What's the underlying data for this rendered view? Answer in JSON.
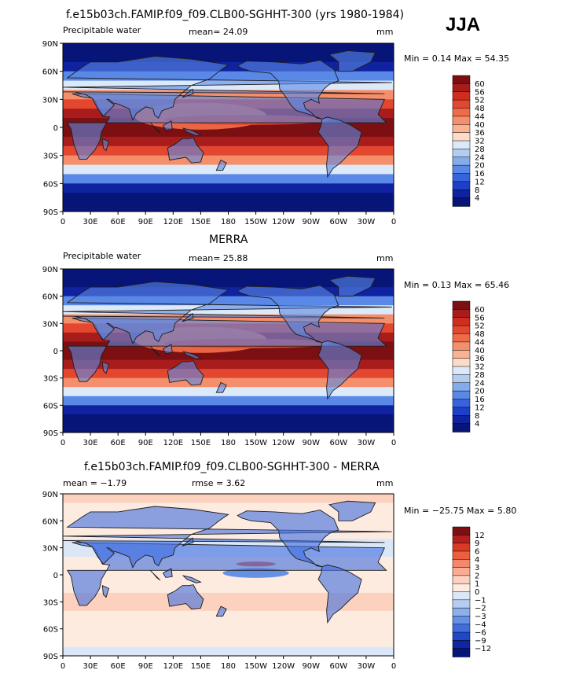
{
  "season": "JJA",
  "colors": {
    "land": "#1d1d1d",
    "background": "#ffffff"
  },
  "chart_data": [
    {
      "type": "heatmap",
      "title": "f.e15b03ch.FAMIP.f09_f09.CLB00-SGHHT-300 (yrs 1980-1984)",
      "left_label": "Precipitable water",
      "center_label": "mean=  24.09",
      "units": "mm",
      "minmax": "Min =   0.14 Max =  54.35",
      "stats": {
        "mean": 24.09,
        "min": 0.14,
        "max": 54.35
      },
      "xticks": [
        "0",
        "30E",
        "60E",
        "90E",
        "120E",
        "150E",
        "180",
        "150W",
        "120W",
        "90W",
        "60W",
        "30W",
        "0"
      ],
      "yticks": [
        "90N",
        "60N",
        "30N",
        "0",
        "30S",
        "60S",
        "90S"
      ],
      "colorbar": {
        "labels": [
          "60",
          "56",
          "52",
          "48",
          "44",
          "40",
          "36",
          "32",
          "28",
          "24",
          "20",
          "16",
          "12",
          "8",
          "4"
        ],
        "colors": [
          "#7b0f12",
          "#a81c1c",
          "#cf2e1f",
          "#e3472f",
          "#ef6a48",
          "#f58e6a",
          "#f9b393",
          "#fddbc6",
          "#dce9f8",
          "#b3cdf2",
          "#84abec",
          "#5a88e6",
          "#3764de",
          "#1d40c9",
          "#0f22a0",
          "#071478"
        ]
      }
    },
    {
      "type": "heatmap",
      "title": "MERRA",
      "left_label": "Precipitable water",
      "center_label": "mean=  25.88",
      "units": "mm",
      "minmax": "Min =   0.13 Max =  65.46",
      "stats": {
        "mean": 25.88,
        "min": 0.13,
        "max": 65.46
      },
      "xticks": [
        "0",
        "30E",
        "60E",
        "90E",
        "120E",
        "150E",
        "180",
        "150W",
        "120W",
        "90W",
        "60W",
        "30W",
        "0"
      ],
      "yticks": [
        "90N",
        "60N",
        "30N",
        "0",
        "30S",
        "60S",
        "90S"
      ],
      "colorbar": {
        "labels": [
          "60",
          "56",
          "52",
          "48",
          "44",
          "40",
          "36",
          "32",
          "28",
          "24",
          "20",
          "16",
          "12",
          "8",
          "4"
        ],
        "colors": [
          "#7b0f12",
          "#a81c1c",
          "#cf2e1f",
          "#e3472f",
          "#ef6a48",
          "#f58e6a",
          "#f9b393",
          "#fddbc6",
          "#dce9f8",
          "#b3cdf2",
          "#84abec",
          "#5a88e6",
          "#3764de",
          "#1d40c9",
          "#0f22a0",
          "#071478"
        ]
      }
    },
    {
      "type": "heatmap",
      "title": "f.e15b03ch.FAMIP.f09_f09.CLB00-SGHHT-300 - MERRA",
      "left_label": "mean =  −1.79",
      "center_label": "rmse =    3.62",
      "units": "mm",
      "minmax": "Min = −25.75 Max =   5.80",
      "stats": {
        "mean": -1.79,
        "rmse": 3.62,
        "min": -25.75,
        "max": 5.8
      },
      "xticks": [
        "0",
        "30E",
        "60E",
        "90E",
        "120E",
        "150E",
        "180",
        "150W",
        "120W",
        "90W",
        "60W",
        "30W",
        "0"
      ],
      "yticks": [
        "90N",
        "60N",
        "30N",
        "0",
        "30S",
        "60S",
        "90S"
      ],
      "colorbar": {
        "labels": [
          "12",
          "9",
          "6",
          "4",
          "3",
          "2",
          "1",
          "0",
          "−1",
          "−2",
          "−3",
          "−4",
          "−6",
          "−9",
          "−12"
        ],
        "colors": [
          "#7b0f12",
          "#b3201c",
          "#d93a26",
          "#ec5e3e",
          "#f5876a",
          "#f9ac92",
          "#fcd1bd",
          "#fdebe0",
          "#dbe7f7",
          "#b5cdf1",
          "#8db0ea",
          "#6690e4",
          "#3f6dde",
          "#2147c9",
          "#0f26a3",
          "#071478"
        ]
      }
    }
  ]
}
